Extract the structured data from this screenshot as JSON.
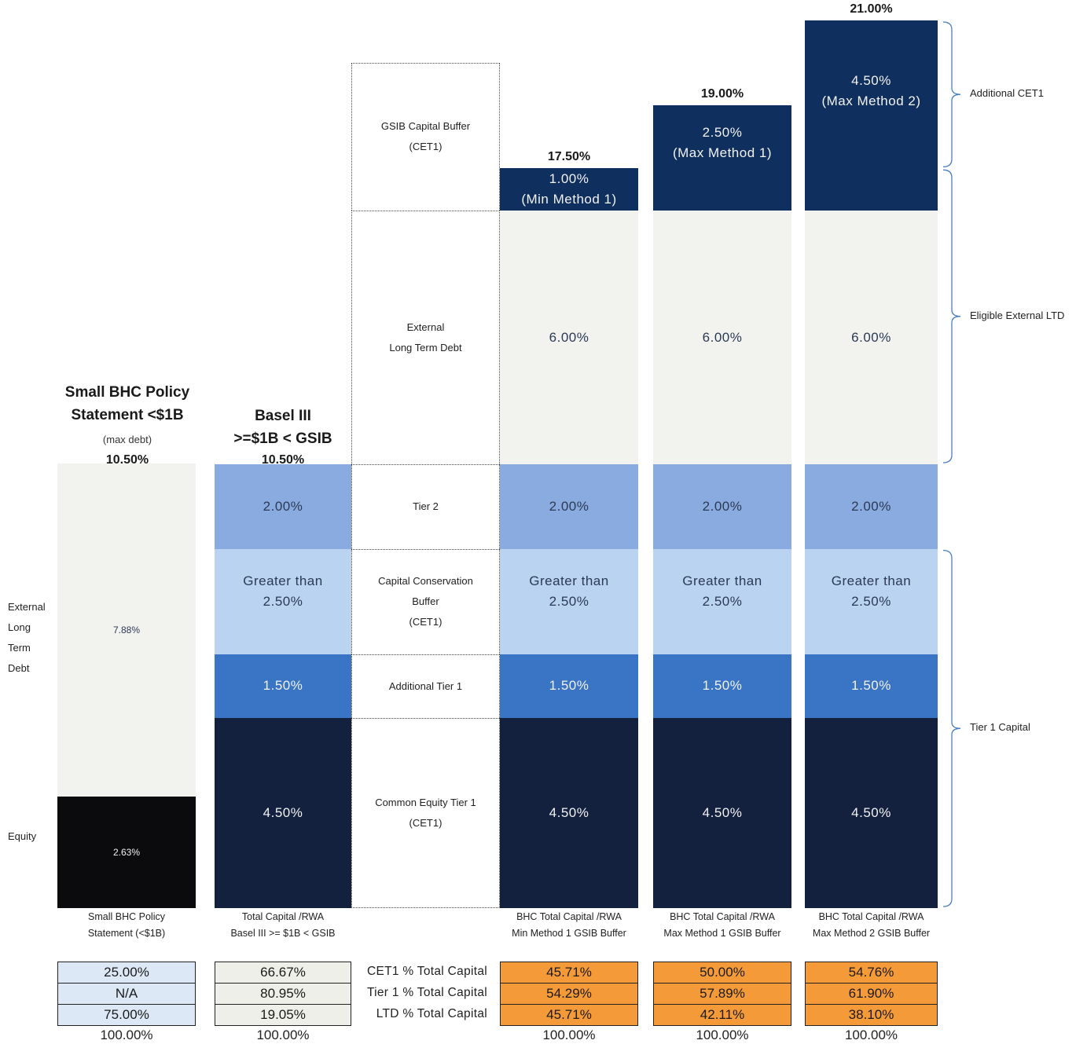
{
  "chart_data": {
    "type": "bar",
    "stacked": true,
    "categories": [
      "Small BHC Policy\nStatement (<$1B)",
      "Total Capital /RWA\nBasel III >= $1B < GSIB",
      "BHC Total Capital /RWA\nMin Method 1 GSIB Buffer",
      "BHC Total Capital /RWA\nMax Method 1 GSIB Buffer",
      "BHC Total Capital /RWA\nMax Method 2 GSIB Buffer"
    ],
    "column_headers": [
      {
        "title": "Small BHC Policy\nStatement <$1B",
        "sub": "(max debt)",
        "total": "10.50%"
      },
      {
        "title": "Basel III\n>=$1B < GSIB",
        "sub": "",
        "total": "10.50%"
      },
      {
        "title": "",
        "sub": "",
        "total": "17.50%"
      },
      {
        "title": "",
        "sub": "",
        "total": "19.00%"
      },
      {
        "title": "",
        "sub": "",
        "total": "21.00%"
      }
    ],
    "small_bhc": {
      "segments": [
        {
          "name": "Equity",
          "value": 2.63,
          "label": "2.63%",
          "color": "#0b0b0d"
        },
        {
          "name": "External Long Term Debt",
          "value": 7.88,
          "label": "7.88%",
          "color": "#f2f2ef"
        }
      ]
    },
    "layers": [
      {
        "key": "cet1",
        "legend": "Common Equity Tier 1\n(CET1)",
        "color": "#13213f",
        "text": "light"
      },
      {
        "key": "at1",
        "legend": "Additional Tier 1",
        "color": "#3a74c4",
        "text": "light"
      },
      {
        "key": "ccb",
        "legend": "Capital Conservation\nBuffer\n(CET1)",
        "color": "#b9d3f1",
        "text": "dark"
      },
      {
        "key": "t2",
        "legend": "Tier 2",
        "color": "#8aabdf",
        "text": "dark"
      },
      {
        "key": "ltd",
        "legend": "External\nLong Term Debt",
        "color": "#f2f2ef",
        "text": "dark"
      },
      {
        "key": "gsib",
        "legend": "GSIB Capital Buffer\n(CET1)",
        "color": "#0f2f5e",
        "text": "light"
      }
    ],
    "values": {
      "basel": {
        "cet1": 4.5,
        "at1": 1.5,
        "ccb": 2.5,
        "t2": 2.0
      },
      "min_m1": {
        "cet1": 4.5,
        "at1": 1.5,
        "ccb": 2.5,
        "t2": 2.0,
        "ltd": 6.0,
        "gsib": 1.0
      },
      "max_m1": {
        "cet1": 4.5,
        "at1": 1.5,
        "ccb": 2.5,
        "t2": 2.0,
        "ltd": 6.0,
        "gsib": 2.5
      },
      "max_m2": {
        "cet1": 4.5,
        "at1": 1.5,
        "ccb": 2.5,
        "t2": 2.0,
        "ltd": 6.0,
        "gsib": 4.5
      }
    },
    "labels": {
      "basel": {
        "cet1": "4.50%",
        "at1": "1.50%",
        "ccb": "Greater than\n2.50%",
        "t2": "2.00%"
      },
      "min_m1": {
        "cet1": "4.50%",
        "at1": "1.50%",
        "ccb": "Greater than\n2.50%",
        "t2": "2.00%",
        "ltd": "6.00%",
        "gsib": "1.00%\n(Min Method 1)"
      },
      "max_m1": {
        "cet1": "4.50%",
        "at1": "1.50%",
        "ccb": "Greater than\n2.50%",
        "t2": "2.00%",
        "ltd": "6.00%",
        "gsib": "2.50%\n(Max Method 1)"
      },
      "max_m2": {
        "cet1": "4.50%",
        "at1": "1.50%",
        "ccb": "Greater than\n2.50%",
        "t2": "2.00%",
        "ltd": "6.00%",
        "gsib": "4.50%\n(Max Method 2)"
      }
    },
    "side_labels": {
      "ltd": "External\nLong\nTerm\nDebt",
      "equity": "Equity"
    },
    "braces": [
      {
        "label": "Additional CET1",
        "from": 17.5,
        "to": 21.0
      },
      {
        "label": "Eligible External LTD",
        "from": 10.5,
        "to": 17.5
      },
      {
        "label": "Tier 1 Capital",
        "from": 0,
        "to": 8.5
      }
    ],
    "table": {
      "row_labels": [
        "CET1 % Total Capital",
        "Tier 1 % Total Capital",
        "LTD % Total Capital"
      ],
      "columns": [
        {
          "values": [
            "25.00%",
            "N/A",
            "75.00%"
          ],
          "total": "100.00%",
          "fill": "#dce8f6"
        },
        {
          "values": [
            "66.67%",
            "80.95%",
            "19.05%"
          ],
          "total": "100.00%",
          "fill": "#efefea"
        },
        {
          "values": [
            "45.71%",
            "54.29%",
            "45.71%"
          ],
          "total": "100.00%",
          "fill": "#f59a38"
        },
        {
          "values": [
            "50.00%",
            "57.89%",
            "42.11%"
          ],
          "total": "100.00%",
          "fill": "#f59a38"
        },
        {
          "values": [
            "54.76%",
            "61.90%",
            "38.10%"
          ],
          "total": "100.00%",
          "fill": "#f59a38"
        }
      ]
    },
    "ylim": [
      0,
      21.0
    ]
  }
}
